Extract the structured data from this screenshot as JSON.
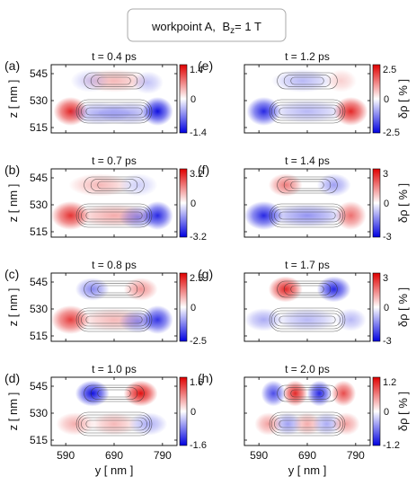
{
  "title_box": {
    "workpoint": "workpoint A,",
    "field": "B",
    "field_sub": "z",
    "field_value": "= 1 T"
  },
  "axis": {
    "ylabel": "z [ nm ]",
    "xlabel": "y [ nm ]",
    "cbar_label": "δρ [ % ]"
  },
  "chart_data": [
    {
      "type": "heatmap",
      "panel": "(a)",
      "title": "t = 0.4 ps",
      "yticks": [
        "545",
        "530",
        "515"
      ],
      "xticks": [],
      "colorbar": {
        "max": "1.4",
        "mid": "0",
        "min": "-1.4"
      },
      "blobs": [
        {
          "y": 600,
          "z": 524,
          "amp": 0.9,
          "sy": 22,
          "sz": 5
        },
        {
          "y": 780,
          "z": 524,
          "amp": -1.0,
          "sy": 20,
          "sz": 5
        },
        {
          "y": 660,
          "z": 523,
          "amp": -0.35,
          "sy": 40,
          "sz": 4
        },
        {
          "y": 720,
          "z": 523,
          "amp": -0.35,
          "sy": 40,
          "sz": 4
        },
        {
          "y": 690,
          "z": 541,
          "amp": 0.3,
          "sy": 45,
          "sz": 4
        },
        {
          "y": 640,
          "z": 541,
          "amp": -0.2,
          "sy": 25,
          "sz": 4
        },
        {
          "y": 760,
          "z": 540,
          "amp": -0.25,
          "sy": 20,
          "sz": 4
        }
      ]
    },
    {
      "type": "heatmap",
      "panel": "(b)",
      "title": "t = 0.7 ps",
      "yticks": [
        "545",
        "530",
        "515"
      ],
      "xticks": [],
      "colorbar": {
        "max": "3.2",
        "mid": "0",
        "min": "-3.2"
      },
      "blobs": [
        {
          "y": 600,
          "z": 524,
          "amp": 0.85,
          "sy": 25,
          "sz": 5
        },
        {
          "y": 780,
          "z": 524,
          "amp": -0.9,
          "sy": 20,
          "sz": 5
        },
        {
          "y": 690,
          "z": 524,
          "amp": 0.35,
          "sy": 50,
          "sz": 4
        },
        {
          "y": 740,
          "z": 523,
          "amp": -0.45,
          "sy": 25,
          "sz": 4
        },
        {
          "y": 660,
          "z": 541,
          "amp": 0.3,
          "sy": 40,
          "sz": 4
        },
        {
          "y": 740,
          "z": 541,
          "amp": -0.2,
          "sy": 25,
          "sz": 4
        }
      ]
    },
    {
      "type": "heatmap",
      "panel": "(c)",
      "title": "t = 0.8 ps",
      "yticks": [
        "545",
        "530",
        "515"
      ],
      "xticks": [],
      "colorbar": {
        "max": "2.5",
        "mid": "0",
        "min": "-2.5"
      },
      "blobs": [
        {
          "y": 600,
          "z": 524,
          "amp": 0.8,
          "sy": 25,
          "sz": 5
        },
        {
          "y": 780,
          "z": 524,
          "amp": -0.85,
          "sy": 20,
          "sz": 5
        },
        {
          "y": 690,
          "z": 524,
          "amp": 0.3,
          "sy": 45,
          "sz": 4
        },
        {
          "y": 740,
          "z": 523,
          "amp": -0.45,
          "sy": 25,
          "sz": 4
        },
        {
          "y": 645,
          "z": 541,
          "amp": -0.5,
          "sy": 22,
          "sz": 4
        },
        {
          "y": 745,
          "z": 541,
          "amp": 0.45,
          "sy": 22,
          "sz": 4
        }
      ]
    },
    {
      "type": "heatmap",
      "panel": "(d)",
      "title": "t = 1.0 ps",
      "yticks": [
        "545",
        "530",
        "515"
      ],
      "xticks": [
        "590",
        "690",
        "790"
      ],
      "colorbar": {
        "max": "1.6",
        "mid": "0",
        "min": "-1.6"
      },
      "blobs": [
        {
          "y": 645,
          "z": 541,
          "amp": -1.0,
          "sy": 22,
          "sz": 4.5
        },
        {
          "y": 745,
          "z": 541,
          "amp": 1.0,
          "sy": 22,
          "sz": 4.5
        },
        {
          "y": 610,
          "z": 524,
          "amp": 0.35,
          "sy": 25,
          "sz": 4
        },
        {
          "y": 690,
          "z": 524,
          "amp": 0.3,
          "sy": 30,
          "sz": 4
        },
        {
          "y": 760,
          "z": 524,
          "amp": -0.35,
          "sy": 25,
          "sz": 4
        }
      ]
    },
    {
      "type": "heatmap",
      "panel": "(e)",
      "title": "t = 1.2 ps",
      "yticks": [],
      "xticks": [],
      "colorbar": {
        "max": "2.5",
        "mid": "0",
        "min": "-2.5"
      },
      "blobs": [
        {
          "y": 600,
          "z": 524,
          "amp": -0.9,
          "sy": 22,
          "sz": 5
        },
        {
          "y": 780,
          "z": 524,
          "amp": 0.9,
          "sy": 22,
          "sz": 5
        },
        {
          "y": 690,
          "z": 524,
          "amp": -0.3,
          "sy": 50,
          "sz": 4
        },
        {
          "y": 680,
          "z": 541,
          "amp": -0.3,
          "sy": 40,
          "sz": 4
        },
        {
          "y": 760,
          "z": 541,
          "amp": 0.2,
          "sy": 20,
          "sz": 4
        }
      ]
    },
    {
      "type": "heatmap",
      "panel": "(f)",
      "title": "t = 1.4 ps",
      "yticks": [],
      "xticks": [],
      "colorbar": {
        "max": "3",
        "mid": "0",
        "min": "-3"
      },
      "blobs": [
        {
          "y": 600,
          "z": 524,
          "amp": -0.9,
          "sy": 25,
          "sz": 5
        },
        {
          "y": 780,
          "z": 524,
          "amp": 0.6,
          "sy": 20,
          "sz": 5
        },
        {
          "y": 690,
          "z": 524,
          "amp": -0.45,
          "sy": 50,
          "sz": 4
        },
        {
          "y": 645,
          "z": 541,
          "amp": 0.55,
          "sy": 22,
          "sz": 4
        },
        {
          "y": 745,
          "z": 541,
          "amp": -0.4,
          "sy": 22,
          "sz": 4
        }
      ]
    },
    {
      "type": "heatmap",
      "panel": "(g)",
      "title": "t = 1.7 ps",
      "yticks": [],
      "xticks": [],
      "colorbar": {
        "max": "3",
        "mid": "0",
        "min": "-3"
      },
      "blobs": [
        {
          "y": 645,
          "z": 541,
          "amp": 0.9,
          "sy": 22,
          "sz": 4.5
        },
        {
          "y": 745,
          "z": 541,
          "amp": -0.9,
          "sy": 22,
          "sz": 4.5
        },
        {
          "y": 600,
          "z": 524,
          "amp": -0.35,
          "sy": 25,
          "sz": 4
        },
        {
          "y": 690,
          "z": 524,
          "amp": -0.3,
          "sy": 40,
          "sz": 4
        },
        {
          "y": 780,
          "z": 524,
          "amp": -0.3,
          "sy": 20,
          "sz": 4
        }
      ]
    },
    {
      "type": "heatmap",
      "panel": "(h)",
      "title": "t = 2.0 ps",
      "yticks": [],
      "xticks": [
        "590",
        "690",
        "790"
      ],
      "colorbar": {
        "max": "1.2",
        "mid": "0",
        "min": "-1.2"
      },
      "blobs": [
        {
          "y": 620,
          "z": 541,
          "amp": -0.75,
          "sy": 16,
          "sz": 4.5
        },
        {
          "y": 665,
          "z": 541,
          "amp": 0.9,
          "sy": 16,
          "sz": 4.5
        },
        {
          "y": 715,
          "z": 541,
          "amp": -0.9,
          "sy": 16,
          "sz": 4.5
        },
        {
          "y": 765,
          "z": 541,
          "amp": 0.75,
          "sy": 16,
          "sz": 4.5
        },
        {
          "y": 610,
          "z": 524,
          "amp": 0.4,
          "sy": 18,
          "sz": 4
        },
        {
          "y": 650,
          "z": 524,
          "amp": -0.4,
          "sy": 18,
          "sz": 4
        },
        {
          "y": 690,
          "z": 524,
          "amp": 0.35,
          "sy": 18,
          "sz": 4
        },
        {
          "y": 730,
          "z": 524,
          "amp": -0.35,
          "sy": 18,
          "sz": 4
        },
        {
          "y": 770,
          "z": 524,
          "amp": 0.4,
          "sy": 18,
          "sz": 4
        }
      ]
    }
  ]
}
